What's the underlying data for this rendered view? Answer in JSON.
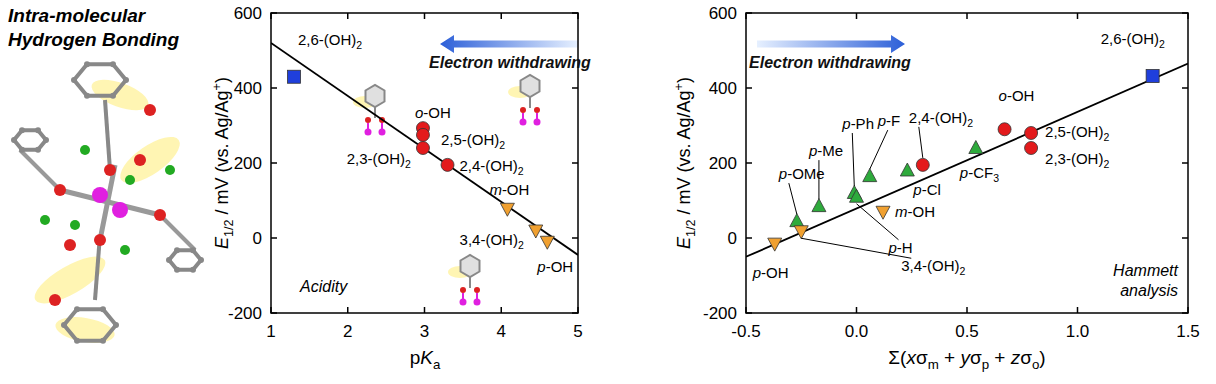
{
  "illustration": {
    "title_lines": [
      "Intra-molecular",
      "Hydrogen Bonding"
    ]
  },
  "chart_data": [
    {
      "type": "scatter",
      "x_label": "pKa",
      "y_label": "E1/2 / mV (vs. Ag/Ag+)",
      "xlim": [
        1,
        5
      ],
      "xticks": [
        1,
        2,
        3,
        4,
        5
      ],
      "ylim": [
        -200,
        600
      ],
      "yticks": [
        -200,
        0,
        200,
        400,
        600
      ],
      "annotations": [
        "Electron withdrawing",
        "Acidity"
      ],
      "series": [
        {
          "type": "line",
          "color": "#000000",
          "x": [
            1,
            5
          ],
          "values": [
            520,
            -45
          ]
        },
        {
          "color": "#1f3fdc",
          "marker": "square",
          "x": [
            1.3
          ],
          "values": [
            430
          ],
          "labels": [
            "2,6-(OH)2"
          ]
        },
        {
          "color": "#e31a1c",
          "marker": "circle",
          "x": [
            2.98,
            2.98,
            2.98,
            3.3
          ],
          "values": [
            293,
            275,
            240,
            195
          ],
          "labels": [
            "o-OH",
            "2,5-(OH)2",
            "2,3-(OH)2",
            "2,4-(OH)2"
          ]
        },
        {
          "color": "#f0a030",
          "marker": "triangle-down",
          "x": [
            4.08,
            4.45,
            4.6
          ],
          "values": [
            78,
            20,
            -10
          ],
          "labels": [
            "m-OH",
            "3,4-(OH)2",
            "p-OH"
          ]
        }
      ]
    },
    {
      "type": "scatter",
      "x_label": "Σ(xσm + yσp + zσo)",
      "y_label": "E1/2 / mV (vs. Ag/Ag+)",
      "xlim": [
        -0.5,
        1.5
      ],
      "xticks": [
        -0.5,
        {
          "value": 0,
          "label": "0.0"
        },
        0.5,
        {
          "value": 1,
          "label": "1.0"
        },
        1.5
      ],
      "ylim": [
        -200,
        600
      ],
      "yticks": [
        -200,
        0,
        200,
        400,
        600
      ],
      "annotations": [
        "Electron withdrawing",
        "Hammett analysis"
      ],
      "series": [
        {
          "type": "line",
          "color": "#000000",
          "x": [
            -0.5,
            1.5
          ],
          "values": [
            -50,
            465
          ]
        },
        {
          "color": "#1f3fdc",
          "marker": "square",
          "x": [
            1.34
          ],
          "values": [
            432
          ],
          "labels": [
            "2,6-(OH)2"
          ]
        },
        {
          "color": "#e31a1c",
          "marker": "circle",
          "x": [
            0.3,
            0.67,
            0.79,
            0.79
          ],
          "values": [
            195,
            290,
            280,
            240
          ],
          "labels": [
            "2,4-(OH)2",
            "o-OH",
            "2,5-(OH)2",
            "2,3-(OH)2"
          ]
        },
        {
          "color": "#2eaa3c",
          "marker": "triangle-up",
          "x": [
            -0.27,
            -0.17,
            -0.01,
            0.0,
            0.06,
            0.23,
            0.54
          ],
          "values": [
            45,
            85,
            120,
            110,
            165,
            180,
            240
          ],
          "labels": [
            "p-OMe",
            "p-Me",
            "p-Ph",
            "p-H",
            "p-F",
            "p-Cl",
            "p-CF3"
          ]
        },
        {
          "color": "#f0a030",
          "marker": "triangle-down",
          "x": [
            -0.37,
            -0.25,
            0.12
          ],
          "values": [
            -15,
            18,
            70
          ],
          "labels": [
            "p-OH",
            "3,4-(OH)2",
            "m-OH"
          ]
        }
      ]
    }
  ]
}
